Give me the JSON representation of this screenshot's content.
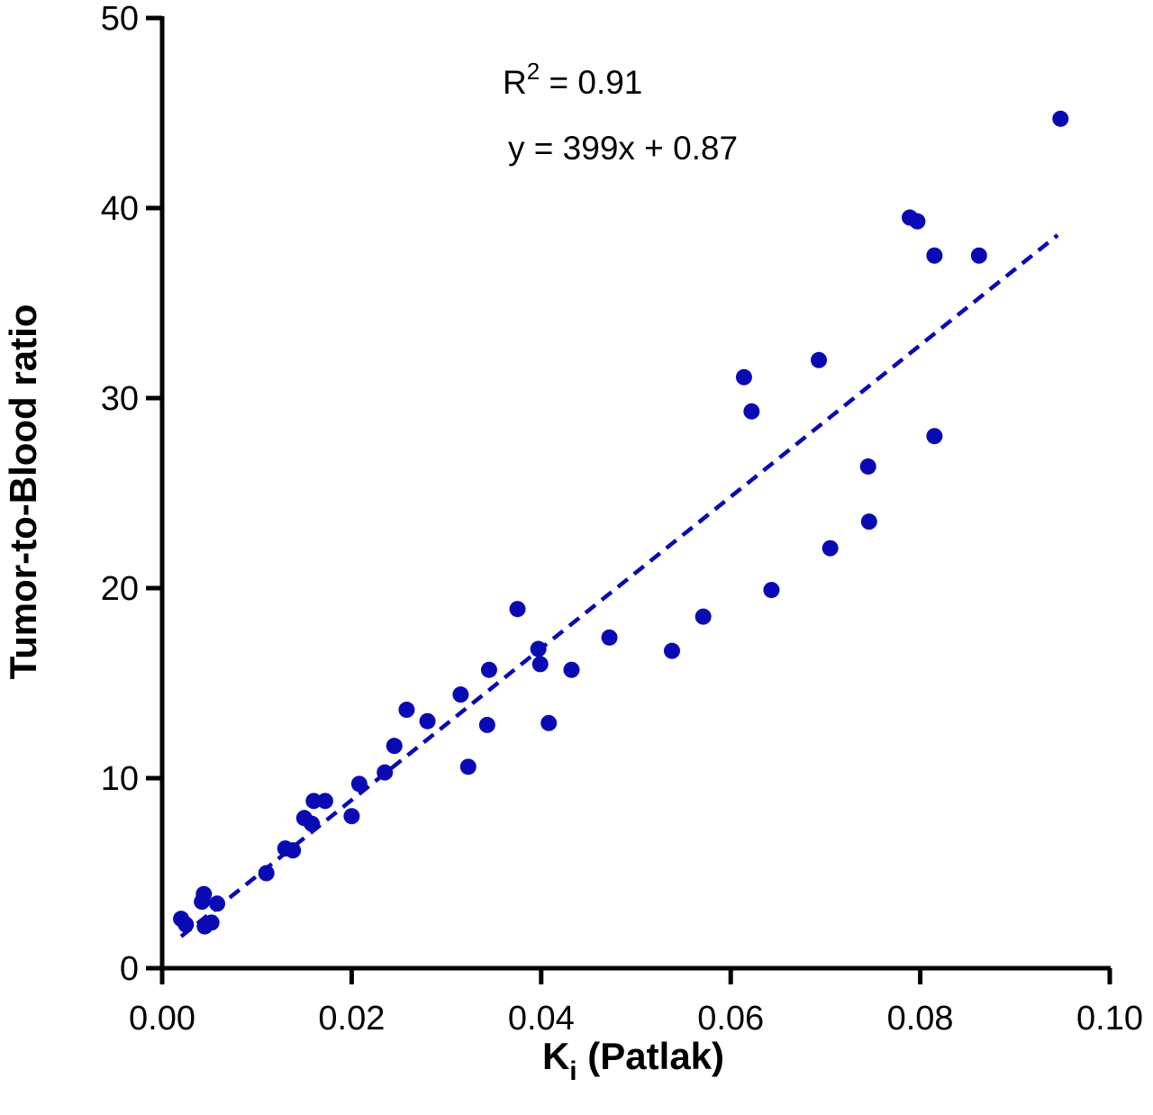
{
  "chart_data": {
    "type": "scatter",
    "xlabel_main": "K",
    "xlabel_sub": "i",
    "xlabel_rest": " (Patlak)",
    "ylabel": "Tumor-to-Blood ratio",
    "xlim": [
      0,
      0.1
    ],
    "ylim": [
      0,
      50
    ],
    "x_ticks": [
      "0.00",
      "0.02",
      "0.04",
      "0.06",
      "0.08",
      "0.10"
    ],
    "y_ticks": [
      "0",
      "10",
      "20",
      "30",
      "40",
      "50"
    ],
    "annotation_r2_prefix": "R",
    "annotation_r2_sup": "2",
    "annotation_r2_rest": " = 0.91",
    "annotation_eq": "y = 399x + 0.87",
    "fit": {
      "slope": 399,
      "intercept": 0.87,
      "x_range": [
        0.002,
        0.0945
      ]
    },
    "color": "#0a0ab4",
    "grid": false,
    "points": [
      [
        0.002,
        2.6
      ],
      [
        0.0025,
        2.3
      ],
      [
        0.0042,
        3.5
      ],
      [
        0.0044,
        3.9
      ],
      [
        0.0045,
        2.2
      ],
      [
        0.0052,
        2.4
      ],
      [
        0.0058,
        3.4
      ],
      [
        0.011,
        5.0
      ],
      [
        0.013,
        6.3
      ],
      [
        0.0138,
        6.2
      ],
      [
        0.015,
        7.9
      ],
      [
        0.0158,
        7.6
      ],
      [
        0.016,
        8.8
      ],
      [
        0.0172,
        8.8
      ],
      [
        0.02,
        8.0
      ],
      [
        0.0208,
        9.7
      ],
      [
        0.0235,
        10.3
      ],
      [
        0.0245,
        11.7
      ],
      [
        0.0258,
        13.6
      ],
      [
        0.028,
        13.0
      ],
      [
        0.0315,
        14.4
      ],
      [
        0.0323,
        10.6
      ],
      [
        0.0343,
        12.8
      ],
      [
        0.0345,
        15.7
      ],
      [
        0.0375,
        18.9
      ],
      [
        0.0397,
        16.8
      ],
      [
        0.0399,
        16.0
      ],
      [
        0.0408,
        12.9
      ],
      [
        0.0432,
        15.7
      ],
      [
        0.0472,
        17.4
      ],
      [
        0.0538,
        16.7
      ],
      [
        0.0571,
        18.5
      ],
      [
        0.0614,
        31.1
      ],
      [
        0.0622,
        29.3
      ],
      [
        0.0643,
        19.9
      ],
      [
        0.0693,
        32.0
      ],
      [
        0.0705,
        22.1
      ],
      [
        0.0745,
        26.4
      ],
      [
        0.0746,
        23.5
      ],
      [
        0.0789,
        39.5
      ],
      [
        0.0797,
        39.3
      ],
      [
        0.0815,
        37.5
      ],
      [
        0.0815,
        28.0
      ],
      [
        0.0862,
        37.5
      ],
      [
        0.0948,
        44.7
      ]
    ]
  }
}
